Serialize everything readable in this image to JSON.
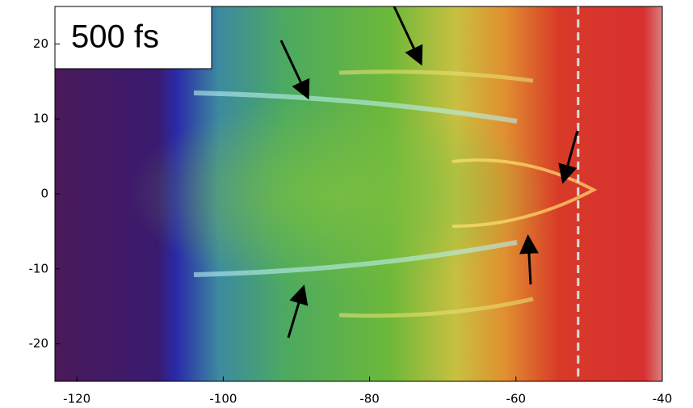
{
  "chart_data": {
    "type": "heatmap",
    "annotation": "500 fs",
    "xlim": [
      -123,
      -40
    ],
    "ylim": [
      -25,
      25
    ],
    "xticks": [
      -120,
      -100,
      -80,
      -60,
      -40
    ],
    "yticks": [
      -20,
      -10,
      0,
      10,
      20
    ],
    "vline": -51.5
  }
}
